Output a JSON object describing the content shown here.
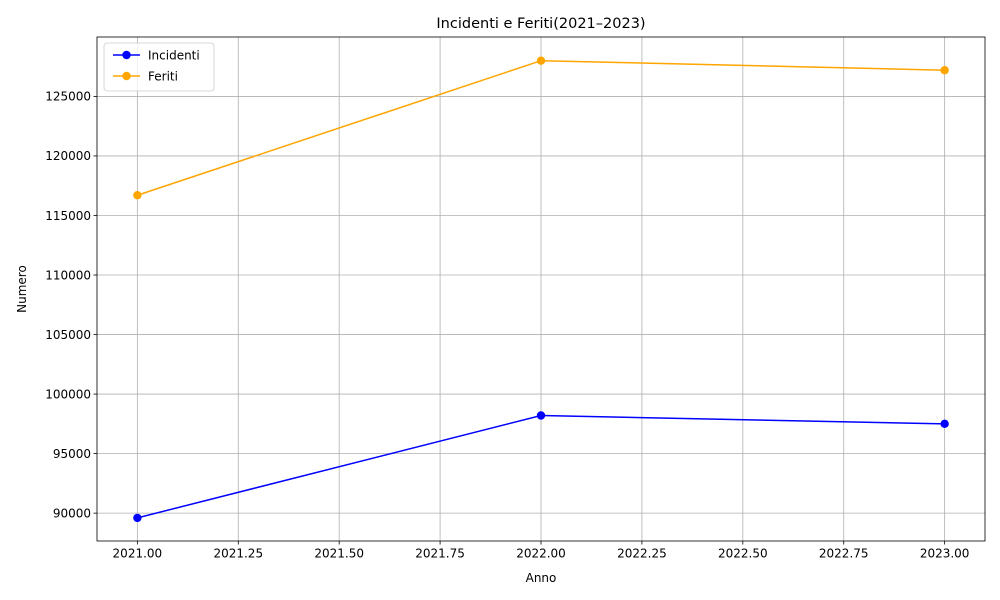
{
  "chart_data": {
    "type": "line",
    "title": "Incidenti e Feriti(2021–2023)",
    "xlabel": "Anno",
    "ylabel": "Numero",
    "x": [
      2021,
      2022,
      2023
    ],
    "xlim": [
      2020.9,
      2023.1
    ],
    "ylim": [
      87660,
      129990
    ],
    "xticks": [
      2021.0,
      2021.25,
      2021.5,
      2021.75,
      2022.0,
      2022.25,
      2022.5,
      2022.75,
      2023.0
    ],
    "xtick_labels": [
      "2021.00",
      "2021.25",
      "2021.50",
      "2021.75",
      "2022.00",
      "2022.25",
      "2022.50",
      "2022.75",
      "2023.00"
    ],
    "yticks": [
      90000,
      95000,
      100000,
      105000,
      110000,
      115000,
      120000,
      125000
    ],
    "ytick_labels": [
      "90000",
      "95000",
      "100000",
      "105000",
      "110000",
      "115000",
      "120000",
      "125000"
    ],
    "grid": true,
    "legend_position": "top-left",
    "series": [
      {
        "name": "Incidenti",
        "color": "#0000ff",
        "marker": "circle",
        "values": [
          89600,
          98200,
          97500
        ]
      },
      {
        "name": "Feriti",
        "color": "#ffa500",
        "marker": "circle",
        "values": [
          116700,
          128000,
          127200
        ]
      }
    ]
  }
}
